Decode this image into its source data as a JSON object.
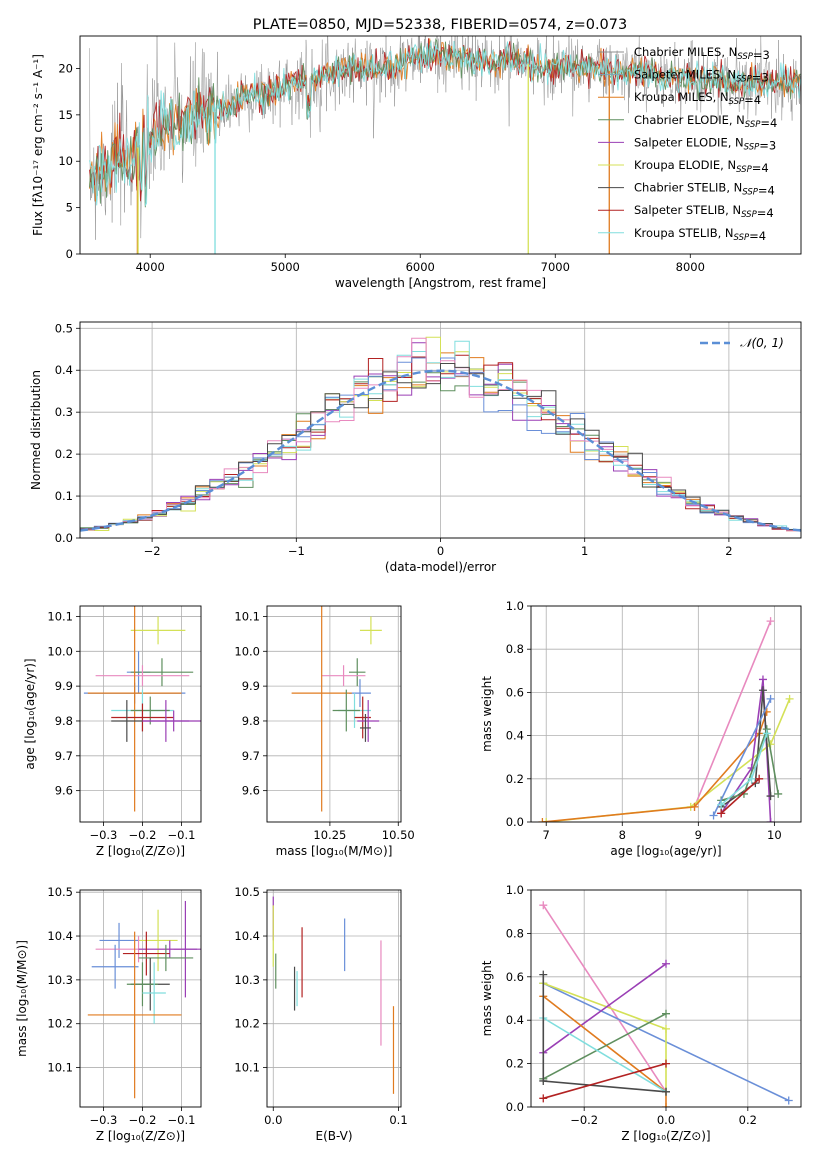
{
  "figure_title": "PLATE=0850, MJD=52338, FIBERID=0574, z=0.073",
  "colors": {
    "chabrier_miles": "#8c8c8c",
    "salpeter_miles": "#7fa3b5",
    "kroupa_miles": "#e07b1f",
    "chabrier_elodie": "#5f8f5f",
    "salpeter_elodie": "#9a3fb5",
    "kroupa_elodie": "#d4e157",
    "chabrier_stelib": "#4a4a4a",
    "salpeter_stelib": "#b22222",
    "kroupa_stelib": "#80dede",
    "extra_pink": "#e88abf",
    "extra_blue": "#6a8fd8",
    "normal_curve": "#5b8fd6"
  },
  "chart_data": [
    {
      "id": "spectrum",
      "type": "line",
      "title": "PLATE=0850, MJD=52338, FIBERID=0574, z=0.073",
      "xlabel": "wavelength [Angstrom, rest frame]",
      "ylabel": "Flux [fλ10⁻¹⁷ erg cm⁻² s⁻¹ A⁻¹]",
      "xlim": [
        3480,
        8820
      ],
      "ylim": [
        0,
        23.5
      ],
      "xticks": [
        4000,
        5000,
        6000,
        7000,
        8000
      ],
      "yticks": [
        0,
        5,
        10,
        15,
        20
      ],
      "grid": false,
      "legend_position": "top-right",
      "continuum": {
        "x": [
          3550,
          3650,
          3750,
          3850,
          3950,
          4050,
          4150,
          4300,
          4500,
          4700,
          4900,
          5100,
          5300,
          5500,
          5700,
          5900,
          6100,
          6300,
          6500,
          6700,
          6900,
          7100,
          7300,
          7500,
          7700,
          7900,
          8100,
          8300,
          8500
        ],
        "y": [
          8.5,
          9.0,
          10.5,
          10.0,
          12.5,
          13.0,
          14.0,
          14.5,
          15.5,
          17.0,
          17.5,
          18.5,
          19.5,
          20.0,
          20.0,
          21.0,
          21.5,
          21.0,
          20.5,
          21.0,
          20.0,
          20.5,
          20.0,
          19.5,
          19.5,
          19.0,
          19.0,
          18.5,
          18.5
        ]
      },
      "series": [
        {
          "name": "Chabrier MILES, N$_{SSP}$=3",
          "color_key": "chabrier_miles"
        },
        {
          "name": "Salpeter MILES, N$_{SSP}$=3",
          "color_key": "salpeter_miles"
        },
        {
          "name": "Kroupa MILES, N$_{SSP}$=4",
          "color_key": "kroupa_miles"
        },
        {
          "name": "Chabrier ELODIE, N$_{SSP}$=4",
          "color_key": "chabrier_elodie"
        },
        {
          "name": "Salpeter ELODIE, N$_{SSP}$=3",
          "color_key": "salpeter_elodie"
        },
        {
          "name": "Kroupa ELODIE, N$_{SSP}$=4",
          "color_key": "kroupa_elodie"
        },
        {
          "name": "Chabrier STELIB, N$_{SSP}$=4",
          "color_key": "chabrier_stelib"
        },
        {
          "name": "Salpeter STELIB, N$_{SSP}$=4",
          "color_key": "salpeter_stelib"
        },
        {
          "name": "Kroupa STELIB, N$_{SSP}$=4",
          "color_key": "kroupa_stelib"
        }
      ]
    },
    {
      "id": "residuals",
      "type": "line",
      "xlabel": "(data-model)/error",
      "ylabel": "Normed distribution",
      "xlim": [
        -2.5,
        2.5
      ],
      "ylim": [
        0,
        0.515
      ],
      "xticks": [
        -2,
        -1,
        0,
        1,
        2
      ],
      "xtick_labels": [
        "−2",
        "−1",
        "0",
        "1",
        "2"
      ],
      "yticks": [
        0.0,
        0.1,
        0.2,
        0.3,
        0.4,
        0.5
      ],
      "ytick_labels": [
        "0.0",
        "0.1",
        "0.2",
        "0.3",
        "0.4",
        "0.5"
      ],
      "grid": true,
      "legend_position": "top-right",
      "normal_label": "𝒩(0, 1)",
      "bin_width": 0.1
    },
    {
      "id": "age_vs_z",
      "type": "scatter",
      "xlabel": "Z [log₁₀(Z/Z⊙)]",
      "ylabel": "age  [log₁₀(age/yr)]",
      "xlim": [
        -0.36,
        -0.05
      ],
      "ylim": [
        9.51,
        10.13
      ],
      "xticks": [
        -0.3,
        -0.2,
        -0.1
      ],
      "xtick_labels": [
        "−0.3",
        "−0.2",
        "−0.1"
      ],
      "yticks": [
        9.6,
        9.7,
        9.8,
        9.9,
        10.0,
        10.1
      ],
      "ytick_labels": [
        "9.6",
        "9.7",
        "9.8",
        "9.9",
        "10.0",
        "10.1"
      ],
      "grid": true,
      "points": [
        {
          "x": -0.16,
          "y": 10.06,
          "xerr": 0.07,
          "yerr": 0.04,
          "color_key": "kroupa_elodie"
        },
        {
          "x": -0.21,
          "y": 9.94,
          "xerr": 0.03,
          "yerr": 0.06,
          "color_key": "extra_blue"
        },
        {
          "x": -0.15,
          "y": 9.94,
          "xerr": 0.08,
          "yerr": 0.04,
          "color_key": "chabrier_elodie"
        },
        {
          "x": -0.2,
          "y": 9.93,
          "xerr": 0.12,
          "yerr": 0.03,
          "color_key": "extra_pink"
        },
        {
          "x": -0.22,
          "y": 9.88,
          "xerr": 0.13,
          "yerr": 0.03,
          "color_key": "extra_blue"
        },
        {
          "x": -0.22,
          "y": 9.88,
          "xerr": 0.12,
          "yerr": 0.34,
          "color_key": "kroupa_miles"
        },
        {
          "x": -0.2,
          "y": 9.83,
          "xerr": 0.08,
          "yerr": 0.06,
          "color_key": "kroupa_stelib"
        },
        {
          "x": -0.18,
          "y": 9.83,
          "xerr": 0.05,
          "yerr": 0.04,
          "color_key": "chabrier_elodie"
        },
        {
          "x": -0.2,
          "y": 9.81,
          "xerr": 0.08,
          "yerr": 0.04,
          "color_key": "salpeter_stelib"
        },
        {
          "x": -0.14,
          "y": 9.8,
          "xerr": 0.06,
          "yerr": 0.06,
          "color_key": "salpeter_elodie"
        },
        {
          "x": -0.12,
          "y": 9.8,
          "xerr": 0.08,
          "yerr": 0.03,
          "color_key": "salpeter_elodie"
        },
        {
          "x": -0.24,
          "y": 9.8,
          "xerr": 0.04,
          "yerr": 0.06,
          "color_key": "chabrier_stelib"
        }
      ]
    },
    {
      "id": "age_vs_mass",
      "type": "scatter",
      "xlabel": "mass [log₁₀(M/M⊙)]",
      "xlim": [
        10.02,
        10.51
      ],
      "ylim": [
        9.51,
        10.13
      ],
      "xticks": [
        10.25,
        10.5
      ],
      "xtick_labels": [
        "10.25",
        "10.50"
      ],
      "yticks": [
        9.6,
        9.7,
        9.8,
        9.9,
        10.0,
        10.1
      ],
      "ytick_labels": [
        "9.6",
        "9.7",
        "9.8",
        "9.9",
        "10.0",
        "10.1"
      ],
      "grid": true,
      "points": [
        {
          "x": 10.4,
          "y": 10.06,
          "xerr": 0.04,
          "yerr": 0.04,
          "color_key": "kroupa_elodie"
        },
        {
          "x": 10.35,
          "y": 9.94,
          "xerr": 0.03,
          "yerr": 0.04,
          "color_key": "chabrier_elodie"
        },
        {
          "x": 10.3,
          "y": 9.93,
          "xerr": 0.08,
          "yerr": 0.03,
          "color_key": "extra_pink"
        },
        {
          "x": 10.36,
          "y": 9.88,
          "xerr": 0.04,
          "yerr": 0.04,
          "color_key": "extra_blue"
        },
        {
          "x": 10.22,
          "y": 9.88,
          "xerr": 0.11,
          "yerr": 0.34,
          "color_key": "kroupa_miles"
        },
        {
          "x": 10.34,
          "y": 9.83,
          "xerr": 0.06,
          "yerr": 0.05,
          "color_key": "kroupa_stelib"
        },
        {
          "x": 10.31,
          "y": 9.83,
          "xerr": 0.05,
          "yerr": 0.06,
          "color_key": "chabrier_elodie"
        },
        {
          "x": 10.37,
          "y": 9.81,
          "xerr": 0.03,
          "yerr": 0.06,
          "color_key": "salpeter_stelib"
        },
        {
          "x": 10.39,
          "y": 9.8,
          "xerr": 0.04,
          "yerr": 0.06,
          "color_key": "salpeter_elodie"
        },
        {
          "x": 10.38,
          "y": 9.78,
          "xerr": 0.02,
          "yerr": 0.04,
          "color_key": "chabrier_stelib"
        }
      ]
    },
    {
      "id": "weight_vs_age",
      "type": "line",
      "xlabel": "age  [log₁₀(age/yr)]",
      "ylabel": "mass weight",
      "xlim": [
        6.8,
        10.35
      ],
      "ylim": [
        0,
        1
      ],
      "xticks": [
        7,
        8,
        9,
        10
      ],
      "yticks": [
        0.0,
        0.2,
        0.4,
        0.6,
        0.8,
        1.0
      ],
      "ytick_labels": [
        "0.0",
        "0.2",
        "0.4",
        "0.6",
        "0.8",
        "1.0"
      ],
      "grid": true,
      "series": [
        {
          "color_key": "extra_pink",
          "x": [
            8.95,
            9.95
          ],
          "y": [
            0.07,
            0.93
          ]
        },
        {
          "color_key": "kroupa_elodie",
          "x": [
            7.0,
            8.9,
            9.95,
            10.2
          ],
          "y": [
            0.0,
            0.07,
            0.36,
            0.57
          ]
        },
        {
          "color_key": "kroupa_miles",
          "x": [
            6.95,
            8.95,
            9.8,
            9.9
          ],
          "y": [
            0.0,
            0.07,
            0.41,
            0.51
          ]
        },
        {
          "color_key": "salpeter_elodie",
          "x": [
            9.3,
            9.7,
            9.85,
            9.95
          ],
          "y": [
            0.04,
            0.25,
            0.66,
            0.0
          ]
        },
        {
          "color_key": "chabrier_stelib",
          "x": [
            9.3,
            9.75,
            9.85,
            9.95
          ],
          "y": [
            0.07,
            0.18,
            0.61,
            0.12
          ]
        },
        {
          "color_key": "chabrier_elodie",
          "x": [
            9.3,
            9.6,
            9.9,
            10.05
          ],
          "y": [
            0.1,
            0.13,
            0.43,
            0.13
          ]
        },
        {
          "color_key": "extra_blue",
          "x": [
            9.2,
            9.95
          ],
          "y": [
            0.03,
            0.57
          ]
        },
        {
          "color_key": "kroupa_stelib",
          "x": [
            9.3,
            9.7,
            9.9
          ],
          "y": [
            0.08,
            0.2,
            0.41
          ]
        },
        {
          "color_key": "salpeter_stelib",
          "x": [
            9.3,
            9.8
          ],
          "y": [
            0.04,
            0.2
          ]
        }
      ]
    },
    {
      "id": "mass_vs_z",
      "type": "scatter",
      "xlabel": "Z [log₁₀(Z/Z⊙)]",
      "ylabel": "mass [log₁₀(M/M⊙)]",
      "xlim": [
        -0.36,
        -0.05
      ],
      "ylim": [
        10.01,
        10.505
      ],
      "xticks": [
        -0.3,
        -0.2,
        -0.1
      ],
      "xtick_labels": [
        "−0.3",
        "−0.2",
        "−0.1"
      ],
      "yticks": [
        10.1,
        10.2,
        10.3,
        10.4,
        10.5
      ],
      "ytick_labels": [
        "10.1",
        "10.2",
        "10.3",
        "10.4",
        "10.5"
      ],
      "grid": true,
      "points": [
        {
          "x": -0.09,
          "y": 10.37,
          "xerr": 0.03,
          "yerr": 0.11,
          "color_key": "salpeter_elodie"
        },
        {
          "x": -0.16,
          "y": 10.39,
          "xerr": 0.05,
          "yerr": 0.07,
          "color_key": "kroupa_elodie"
        },
        {
          "x": -0.26,
          "y": 10.39,
          "xerr": 0.05,
          "yerr": 0.04,
          "color_key": "extra_blue"
        },
        {
          "x": -0.21,
          "y": 10.37,
          "xerr": 0.11,
          "yerr": 0.03,
          "color_key": "extra_pink"
        },
        {
          "x": -0.13,
          "y": 10.37,
          "xerr": 0.08,
          "yerr": 0.02,
          "color_key": "salpeter_elodie"
        },
        {
          "x": -0.19,
          "y": 10.36,
          "xerr": 0.06,
          "yerr": 0.05,
          "color_key": "salpeter_stelib"
        },
        {
          "x": -0.14,
          "y": 10.35,
          "xerr": 0.07,
          "yerr": 0.03,
          "color_key": "chabrier_elodie"
        },
        {
          "x": -0.27,
          "y": 10.33,
          "xerr": 0.06,
          "yerr": 0.05,
          "color_key": "extra_blue"
        },
        {
          "x": -0.18,
          "y": 10.29,
          "xerr": 0.05,
          "yerr": 0.06,
          "color_key": "chabrier_stelib"
        },
        {
          "x": -0.2,
          "y": 10.29,
          "xerr": 0.04,
          "yerr": 0.05,
          "color_key": "chabrier_elodie"
        },
        {
          "x": -0.17,
          "y": 10.27,
          "xerr": 0.03,
          "yerr": 0.07,
          "color_key": "kroupa_stelib"
        },
        {
          "x": -0.22,
          "y": 10.22,
          "xerr": 0.12,
          "yerr": 0.19,
          "color_key": "kroupa_miles"
        }
      ]
    },
    {
      "id": "mass_vs_ebv",
      "type": "scatter",
      "xlabel": "E(B-V)",
      "xlim": [
        -0.005,
        0.102
      ],
      "ylim": [
        10.01,
        10.505
      ],
      "xticks": [
        0.0,
        0.1
      ],
      "xtick_labels": [
        "0.0",
        "0.1"
      ],
      "yticks": [
        10.1,
        10.2,
        10.3,
        10.4,
        10.5
      ],
      "ytick_labels": [
        "10.1",
        "10.2",
        "10.3",
        "10.4",
        "10.5"
      ],
      "grid": true,
      "points": [
        {
          "x": 0.0,
          "y": 10.44,
          "xerr": 0,
          "yerr": 0.05,
          "color_key": "salpeter_elodie"
        },
        {
          "x": 0.0,
          "y": 10.4,
          "xerr": 0,
          "yerr": 0.07,
          "color_key": "kroupa_elodie"
        },
        {
          "x": 0.002,
          "y": 10.32,
          "xerr": 0,
          "yerr": 0.04,
          "color_key": "chabrier_elodie"
        },
        {
          "x": 0.017,
          "y": 10.28,
          "xerr": 0,
          "yerr": 0.05,
          "color_key": "chabrier_stelib"
        },
        {
          "x": 0.019,
          "y": 10.28,
          "xerr": 0,
          "yerr": 0.04,
          "color_key": "kroupa_stelib"
        },
        {
          "x": 0.023,
          "y": 10.34,
          "xerr": 0,
          "yerr": 0.08,
          "color_key": "salpeter_stelib"
        },
        {
          "x": 0.057,
          "y": 10.38,
          "xerr": 0,
          "yerr": 0.06,
          "color_key": "extra_blue"
        },
        {
          "x": 0.086,
          "y": 10.27,
          "xerr": 0,
          "yerr": 0.12,
          "color_key": "extra_pink"
        },
        {
          "x": 0.096,
          "y": 10.14,
          "xerr": 0,
          "yerr": 0.1,
          "color_key": "kroupa_miles"
        }
      ]
    },
    {
      "id": "weight_vs_z",
      "type": "line",
      "xlabel": "Z [log₁₀(Z/Z⊙)]",
      "ylabel": "mass weight",
      "xlim": [
        -0.33,
        0.33
      ],
      "ylim": [
        0,
        1
      ],
      "xticks": [
        -0.2,
        0.0,
        0.2
      ],
      "xtick_labels": [
        "−0.2",
        "0.0",
        "0.2"
      ],
      "yticks": [
        0.0,
        0.2,
        0.4,
        0.6,
        0.8,
        1.0
      ],
      "ytick_labels": [
        "0.0",
        "0.2",
        "0.4",
        "0.6",
        "0.8",
        "1.0"
      ],
      "grid": true,
      "series": [
        {
          "color_key": "extra_pink",
          "x": [
            -0.3,
            0.0
          ],
          "y": [
            0.93,
            0.07
          ]
        },
        {
          "color_key": "extra_blue",
          "x": [
            -0.3,
            0.3
          ],
          "y": [
            0.57,
            0.03
          ]
        },
        {
          "color_key": "kroupa_elodie",
          "x": [
            -0.3,
            0.0,
            0.0
          ],
          "y": [
            0.57,
            0.36,
            0.07
          ]
        },
        {
          "color_key": "salpeter_elodie",
          "x": [
            -0.3,
            0.0
          ],
          "y": [
            0.25,
            0.66
          ]
        },
        {
          "color_key": "kroupa_miles",
          "x": [
            -0.3,
            0.0,
            0.0
          ],
          "y": [
            0.51,
            0.07,
            0.0
          ]
        },
        {
          "color_key": "chabrier_elodie",
          "x": [
            -0.3,
            0.0
          ],
          "y": [
            0.13,
            0.43
          ]
        },
        {
          "color_key": "kroupa_stelib",
          "x": [
            -0.3,
            0.0
          ],
          "y": [
            0.41,
            0.07
          ]
        },
        {
          "color_key": "chabrier_stelib",
          "x": [
            -0.3,
            -0.3,
            0.0
          ],
          "y": [
            0.61,
            0.12,
            0.07
          ]
        },
        {
          "color_key": "salpeter_stelib",
          "x": [
            -0.3,
            0.0
          ],
          "y": [
            0.04,
            0.2
          ]
        }
      ]
    }
  ]
}
